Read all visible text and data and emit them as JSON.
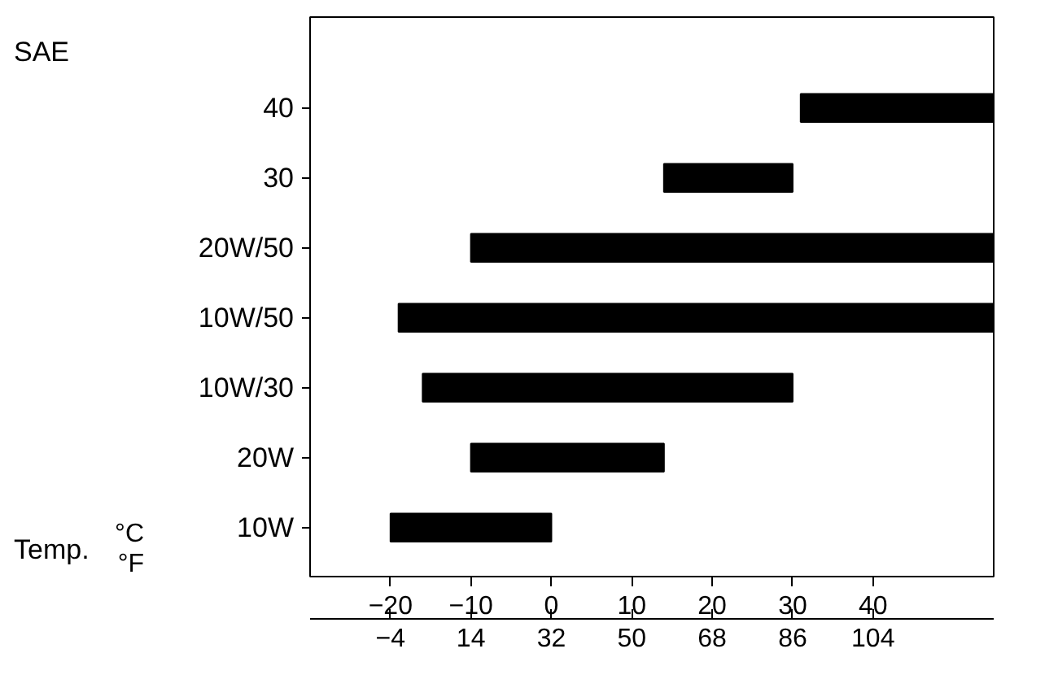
{
  "chart_data": {
    "type": "bar",
    "orientation": "horizontal",
    "xlabel": "°C",
    "x2label": "°F",
    "annotations": [
      "SAE",
      "Temp."
    ],
    "categories": [
      "40",
      "30",
      "20W/50",
      "10W/50",
      "10W/30",
      "20W",
      "10W"
    ],
    "base": [
      31,
      14,
      -10,
      -19,
      -16,
      -10,
      -20
    ],
    "values": [
      24,
      16,
      65,
      74,
      46,
      24,
      20
    ],
    "color": "#000000",
    "xlim": [
      -30,
      55
    ],
    "xticks": [
      -20,
      -10,
      0,
      10,
      20,
      30,
      40
    ],
    "x2lim": [
      -22,
      131
    ],
    "x2ticks": [
      -4,
      14,
      32,
      50,
      68,
      86,
      104
    ],
    "grid": false
  }
}
